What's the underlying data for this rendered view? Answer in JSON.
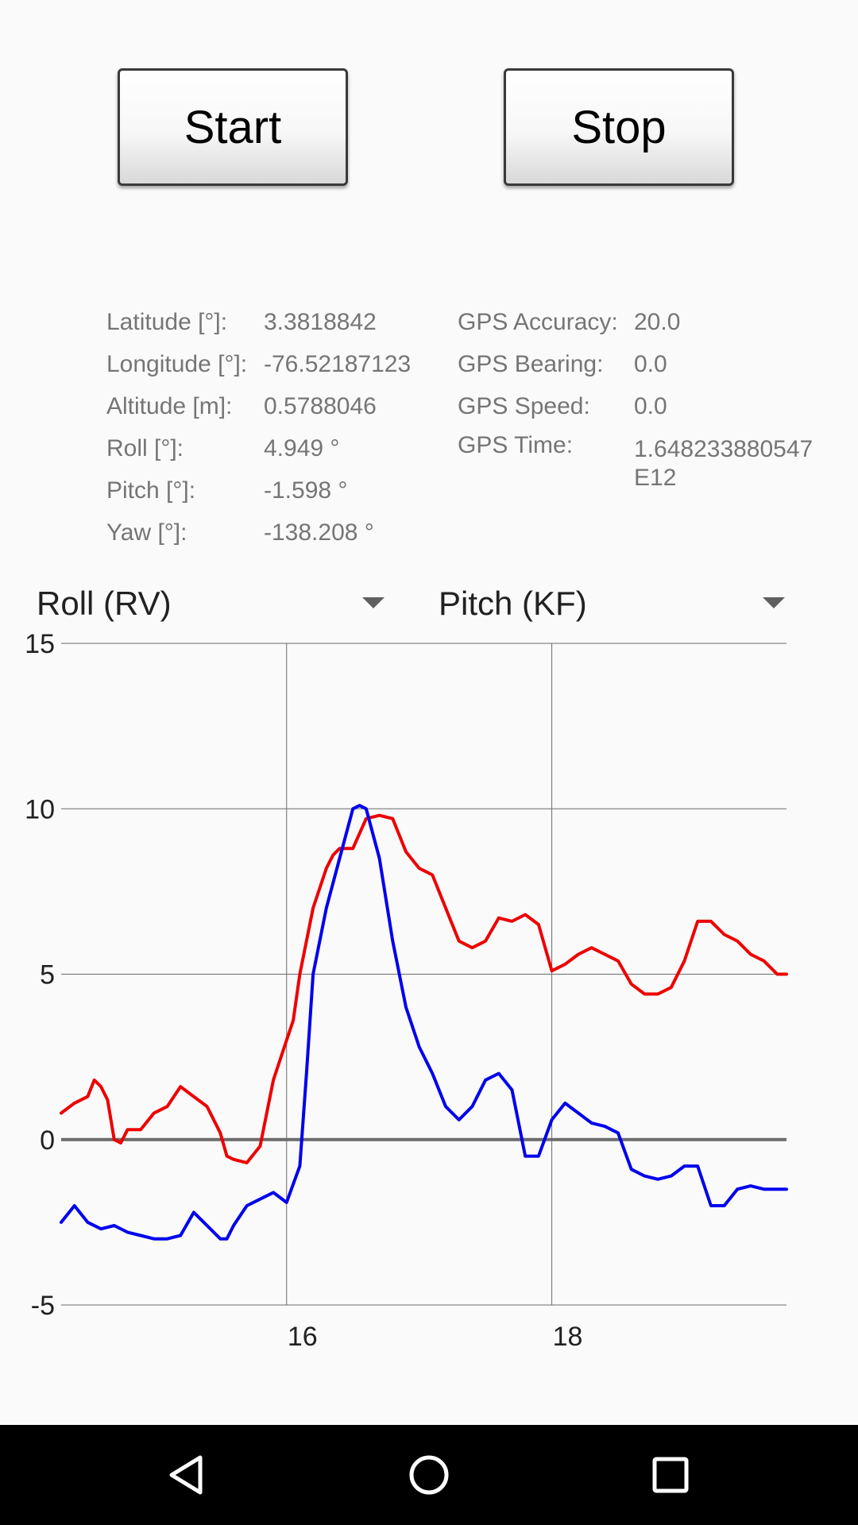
{
  "buttons": {
    "start_label": "Start",
    "stop_label": "Stop"
  },
  "info": {
    "left": [
      {
        "label": "Latitude [°]:",
        "value": "3.3818842"
      },
      {
        "label": "Longitude [°]:",
        "value": "-76.52187123"
      },
      {
        "label": "Altitude [m]:",
        "value": "0.5788046"
      },
      {
        "label": "Roll [°]:",
        "value": "4.949 °"
      },
      {
        "label": "Pitch [°]:",
        "value": "-1.598 °"
      },
      {
        "label": "Yaw [°]:",
        "value": "-138.208 °"
      }
    ],
    "right": [
      {
        "label": "GPS Accuracy:",
        "value": "20.0"
      },
      {
        "label": "GPS Bearing:",
        "value": "0.0"
      },
      {
        "label": "GPS Speed:",
        "value": "0.0"
      },
      {
        "label": "GPS Time:",
        "value": "1.648233880547E12"
      }
    ]
  },
  "spinners": {
    "left_selected": "Roll (RV)",
    "right_selected": "Pitch (KF)"
  },
  "colors": {
    "series_red": "#ee0000",
    "series_blue": "#0000ee",
    "grid": "#6b6b6b",
    "zero_line": "#6b6b6b",
    "navbar": "#000000"
  },
  "navbar": {
    "back_icon": "back-triangle-icon",
    "home_icon": "home-circle-icon",
    "recents_icon": "recents-square-icon"
  },
  "chart_data": {
    "type": "line",
    "xlim": [
      14.3,
      19.77
    ],
    "ylim": [
      -5,
      15
    ],
    "x_ticks": [
      16,
      18
    ],
    "y_ticks": [
      15,
      10,
      5,
      0,
      -5
    ],
    "grid": true,
    "series": [
      {
        "color": "#ee0000",
        "x": [
          14.3,
          14.4,
          14.5,
          14.55,
          14.6,
          14.65,
          14.7,
          14.75,
          14.8,
          14.9,
          15.0,
          15.1,
          15.2,
          15.3,
          15.4,
          15.5,
          15.55,
          15.6,
          15.7,
          15.8,
          15.9,
          16.0,
          16.05,
          16.1,
          16.2,
          16.3,
          16.35,
          16.4,
          16.5,
          16.6,
          16.7,
          16.8,
          16.9,
          17.0,
          17.1,
          17.2,
          17.3,
          17.4,
          17.5,
          17.6,
          17.7,
          17.8,
          17.9,
          18.0,
          18.1,
          18.2,
          18.3,
          18.4,
          18.5,
          18.6,
          18.7,
          18.8,
          18.9,
          19.0,
          19.1,
          19.2,
          19.3,
          19.4,
          19.5,
          19.6,
          19.7,
          19.77
        ],
        "values": [
          0.8,
          1.1,
          1.3,
          1.8,
          1.6,
          1.2,
          0.0,
          -0.1,
          0.3,
          0.3,
          0.8,
          1.0,
          1.6,
          1.3,
          1.0,
          0.2,
          -0.5,
          -0.6,
          -0.7,
          -0.2,
          1.8,
          3.0,
          3.6,
          5.0,
          7.0,
          8.2,
          8.6,
          8.8,
          8.8,
          9.7,
          9.8,
          9.7,
          8.7,
          8.2,
          8.0,
          7.0,
          6.0,
          5.8,
          6.0,
          6.7,
          6.6,
          6.8,
          6.5,
          5.1,
          5.3,
          5.6,
          5.8,
          5.6,
          5.4,
          4.7,
          4.4,
          4.4,
          4.6,
          5.4,
          6.6,
          6.6,
          6.2,
          6.0,
          5.6,
          5.4,
          5.0,
          5.0
        ]
      },
      {
        "color": "#0000ee",
        "x": [
          14.3,
          14.4,
          14.5,
          14.6,
          14.7,
          14.8,
          14.9,
          15.0,
          15.1,
          15.2,
          15.3,
          15.4,
          15.5,
          15.55,
          15.6,
          15.7,
          15.8,
          15.9,
          16.0,
          16.1,
          16.15,
          16.2,
          16.3,
          16.4,
          16.5,
          16.55,
          16.6,
          16.7,
          16.8,
          16.9,
          17.0,
          17.1,
          17.2,
          17.3,
          17.4,
          17.5,
          17.6,
          17.7,
          17.8,
          17.9,
          18.0,
          18.1,
          18.2,
          18.3,
          18.4,
          18.5,
          18.6,
          18.7,
          18.8,
          18.9,
          19.0,
          19.1,
          19.2,
          19.3,
          19.4,
          19.5,
          19.6,
          19.7,
          19.77
        ],
        "values": [
          -2.5,
          -2.0,
          -2.5,
          -2.7,
          -2.6,
          -2.8,
          -2.9,
          -3.0,
          -3.0,
          -2.9,
          -2.2,
          -2.6,
          -3.0,
          -3.0,
          -2.6,
          -2.0,
          -1.8,
          -1.6,
          -1.9,
          -0.8,
          2.0,
          5.0,
          7.0,
          8.5,
          10.0,
          10.1,
          10.0,
          8.5,
          6.0,
          4.0,
          2.8,
          2.0,
          1.0,
          0.6,
          1.0,
          1.8,
          2.0,
          1.5,
          -0.5,
          -0.5,
          0.6,
          1.1,
          0.8,
          0.5,
          0.4,
          0.2,
          -0.9,
          -1.1,
          -1.2,
          -1.1,
          -0.8,
          -0.8,
          -2.0,
          -2.0,
          -1.5,
          -1.4,
          -1.5,
          -1.5,
          -1.5
        ]
      }
    ]
  }
}
